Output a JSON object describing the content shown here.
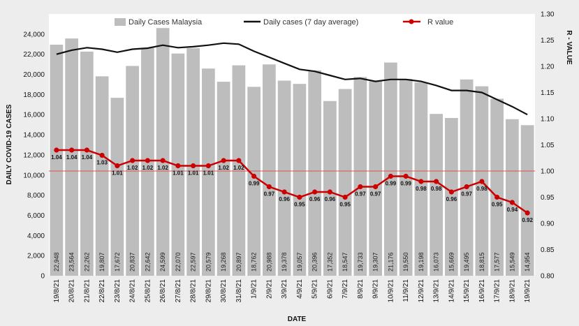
{
  "chart_data": {
    "type": "bar",
    "categories": [
      "19/8/21",
      "20/8/21",
      "21/8/21",
      "22/8/21",
      "23/8/21",
      "24/8/21",
      "25/8/21",
      "26/8/21",
      "27/8/21",
      "28/8/21",
      "29/8/21",
      "30/8/21",
      "31/8/21",
      "1/9/21",
      "2/9/21",
      "3/9/21",
      "4/9/21",
      "5/9/21",
      "6/9/21",
      "7/9/21",
      "8/9/21",
      "9/9/21",
      "10/9/21",
      "11/9/21",
      "12/9/21",
      "13/9/21",
      "14/9/21",
      "15/9/21",
      "16/9/21",
      "17/9/21",
      "18/9/21",
      "19/9/21"
    ],
    "series": [
      {
        "name": "Daily Cases Malaysia",
        "type": "bar",
        "axis": "left",
        "values": [
          22948,
          23564,
          22262,
          19807,
          17672,
          20837,
          22642,
          24599,
          22070,
          22597,
          20579,
          19268,
          20897,
          18762,
          20988,
          19378,
          19057,
          20396,
          17352,
          18547,
          19733,
          19307,
          21176,
          19550,
          19198,
          16073,
          15669,
          19495,
          18815,
          17577,
          15549,
          14954
        ],
        "labels": [
          "22,948",
          "23,564",
          "22,262",
          "19,807",
          "17,672",
          "20,837",
          "22,642",
          "24,599",
          "22,070",
          "22,597",
          "20,579",
          "19,268",
          "20,897",
          "18,762",
          "20,988",
          "19,378",
          "19,057",
          "20,396",
          "17,352",
          "18,547",
          "19,733",
          "19,307",
          "21,176",
          "19,550",
          "19,198",
          "16,073",
          "15,669",
          "19,495",
          "18,815",
          "17,577",
          "15,549",
          "14,954"
        ],
        "color": "#bdbdbd"
      },
      {
        "name": "Daily cases (7 day average)",
        "type": "line",
        "axis": "left",
        "values": [
          22000,
          22400,
          22650,
          22500,
          22200,
          22500,
          22600,
          22900,
          22650,
          22750,
          22900,
          23100,
          23000,
          22300,
          21700,
          21100,
          20500,
          20300,
          19900,
          19500,
          19600,
          19300,
          19500,
          19500,
          19300,
          18900,
          18400,
          18400,
          18200,
          17500,
          16800,
          16000
        ],
        "color": "#111111"
      },
      {
        "name": "R value",
        "type": "line",
        "axis": "right",
        "values": [
          1.04,
          1.04,
          1.04,
          1.03,
          1.01,
          1.02,
          1.02,
          1.02,
          1.01,
          1.01,
          1.01,
          1.02,
          1.02,
          0.99,
          0.97,
          0.96,
          0.95,
          0.96,
          0.96,
          0.95,
          0.97,
          0.97,
          0.99,
          0.99,
          0.98,
          0.98,
          0.96,
          0.97,
          0.98,
          0.95,
          0.94,
          0.92
        ],
        "labels": [
          "1.04",
          "1.04",
          "1.04",
          "1.03",
          "1.01",
          "1.02",
          "1.02",
          "1.02",
          "1.01",
          "1.01",
          "1.01",
          "1.02",
          "1.02",
          "0.99",
          "0.97",
          "0.96",
          "0.95",
          "0.96",
          "0.96",
          "0.95",
          "0.97",
          "0.97",
          "0.99",
          "0.99",
          "0.98",
          "0.98",
          "0.96",
          "0.97",
          "0.98",
          "0.95",
          "0.94",
          "0.92"
        ],
        "color": "#cc0000"
      }
    ],
    "reference_line": {
      "axis": "right",
      "value": 1.0,
      "color": "#d9534f"
    },
    "ylabel": "DAILY COVID-19 CASES",
    "y2label": "R - VALUE",
    "xlabel": "DATE",
    "ylim": [
      0,
      26000
    ],
    "y_ticks": [
      "0",
      "2,000",
      "4,000",
      "6,000",
      "8,000",
      "10,000",
      "12,000",
      "14,000",
      "16,000",
      "18,000",
      "20,000",
      "22,000",
      "24,000"
    ],
    "y2lim": [
      0.8,
      1.3
    ],
    "y2_ticks": [
      "0.80",
      "0.85",
      "0.90",
      "0.95",
      "1.00",
      "1.05",
      "1.10",
      "1.15",
      "1.20",
      "1.25",
      "1.30"
    ],
    "grid": false,
    "legend": "top-center"
  }
}
